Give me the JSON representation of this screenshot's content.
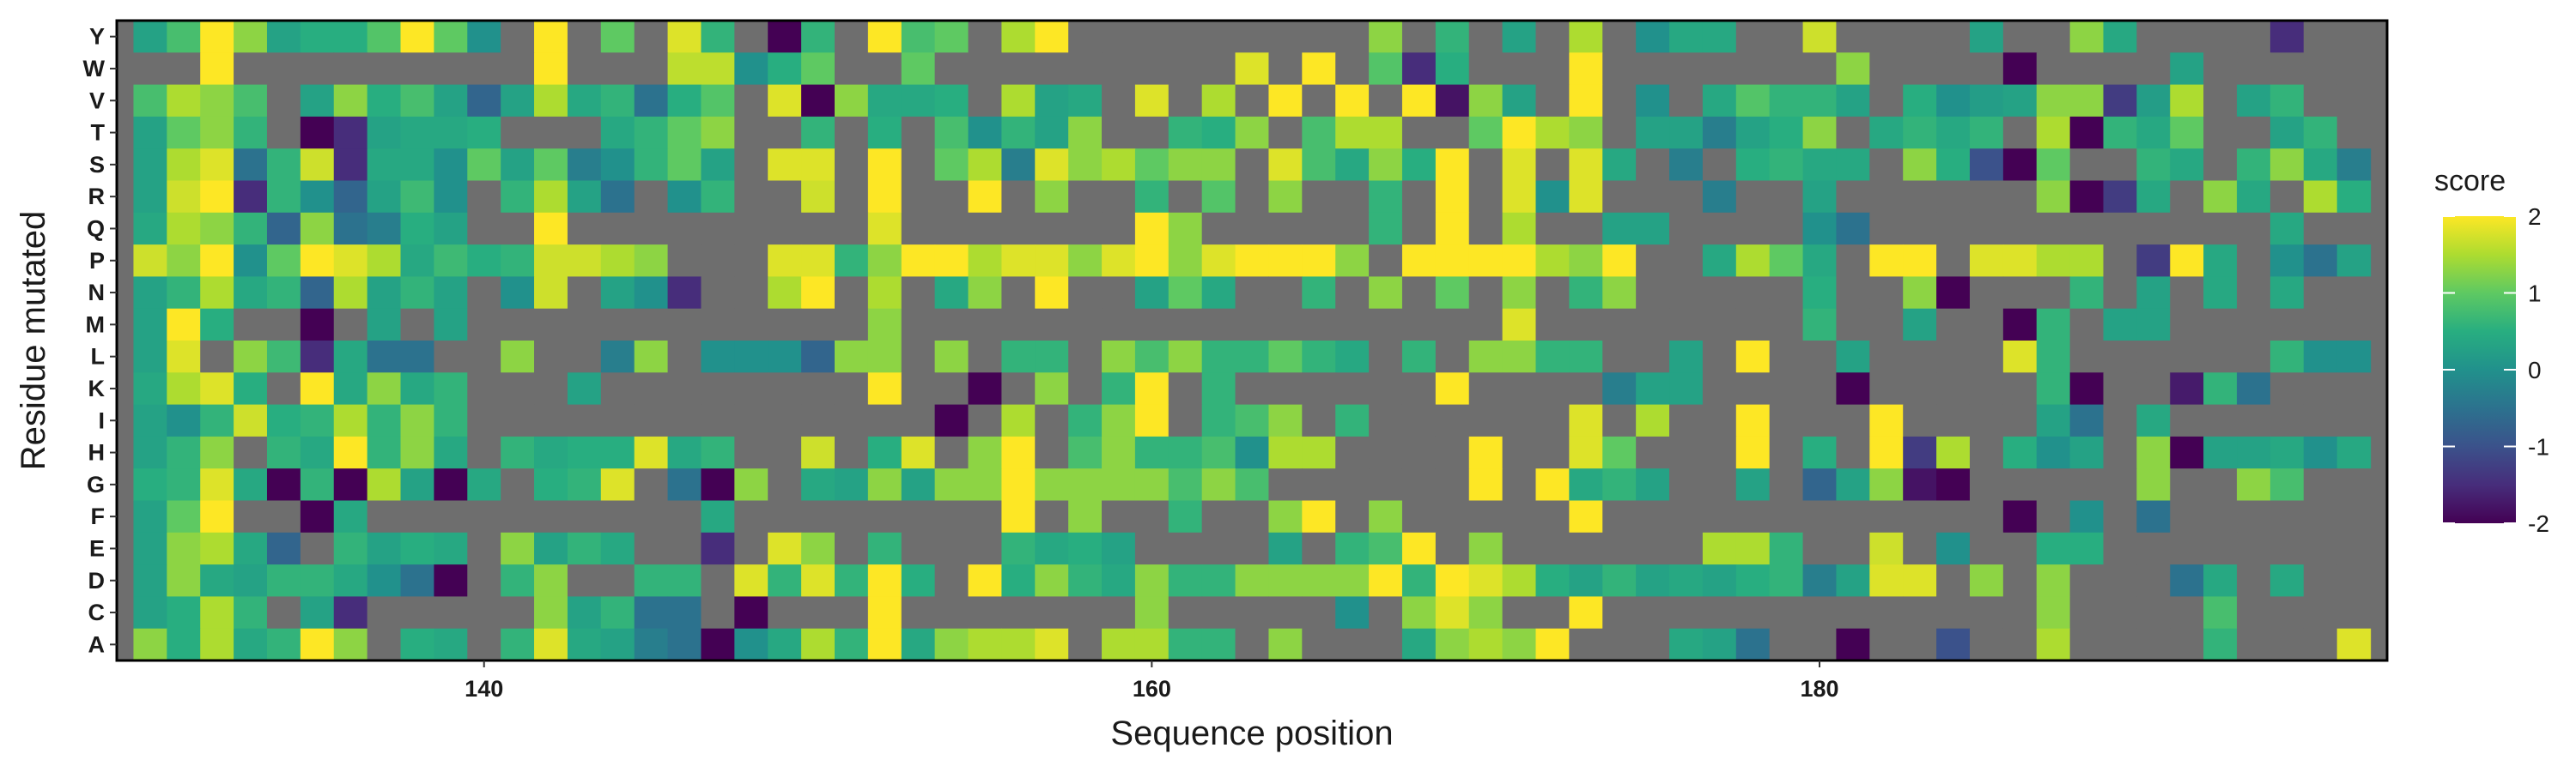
{
  "chart_data": {
    "type": "heatmap",
    "title": "",
    "xlabel": "Sequence position",
    "ylabel": "Residue mutated",
    "x_range": [
      129,
      197
    ],
    "x_ticks": [
      140,
      160,
      180
    ],
    "residues": [
      "Y",
      "W",
      "V",
      "T",
      "S",
      "R",
      "Q",
      "P",
      "N",
      "M",
      "L",
      "K",
      "I",
      "H",
      "G",
      "F",
      "E",
      "D",
      "C",
      "A"
    ],
    "positions": [
      130,
      131,
      132,
      133,
      134,
      135,
      136,
      137,
      138,
      139,
      140,
      141,
      142,
      143,
      144,
      145,
      146,
      147,
      148,
      149,
      150,
      151,
      152,
      153,
      154,
      155,
      156,
      157,
      158,
      159,
      160,
      161,
      162,
      163,
      164,
      165,
      166,
      167,
      168,
      169,
      170,
      171,
      172,
      173,
      174,
      175,
      176,
      177,
      178,
      179,
      180,
      181,
      182,
      183,
      184,
      185,
      186,
      187,
      188,
      189,
      190,
      191,
      192,
      193,
      194,
      195,
      196
    ],
    "na_color": "#6e6e6e",
    "colorscale": "viridis",
    "legend": {
      "title": "score",
      "ticks": [
        2,
        1,
        0,
        -1,
        -2
      ],
      "range": [
        -2,
        2
      ],
      "position": "right"
    },
    "values": [
      [
        0.3,
        0.8,
        2.0,
        1.3,
        0.3,
        0.5,
        0.5,
        0.9,
        2.0,
        1.0,
        0.0,
        null,
        2.0,
        null,
        1.0,
        null,
        1.8,
        0.6,
        null,
        -2.0,
        0.6,
        null,
        2.0,
        0.8,
        1.0,
        null,
        1.5,
        2.0,
        null,
        null,
        null,
        null,
        null,
        null,
        null,
        null,
        null,
        1.3,
        null,
        0.6,
        null,
        0.3,
        null,
        1.5,
        null,
        0.0,
        0.4,
        0.4,
        null,
        null,
        1.7,
        null,
        null,
        null,
        null,
        0.3,
        null,
        null,
        1.3,
        0.4,
        null,
        null,
        null,
        null,
        -1.5,
        null,
        null
      ],
      [
        null,
        null,
        2.0,
        null,
        null,
        null,
        null,
        null,
        null,
        null,
        null,
        null,
        2.0,
        null,
        null,
        null,
        1.6,
        1.6,
        0.0,
        0.5,
        1.0,
        null,
        null,
        1.0,
        null,
        null,
        null,
        null,
        null,
        null,
        null,
        null,
        null,
        1.8,
        null,
        2.0,
        null,
        0.9,
        -1.5,
        0.5,
        null,
        null,
        null,
        2.0,
        null,
        null,
        null,
        null,
        null,
        null,
        null,
        1.3,
        null,
        null,
        null,
        null,
        -2.0,
        null,
        null,
        null,
        null,
        0.3,
        null,
        null,
        null,
        null,
        null
      ],
      [
        0.8,
        1.5,
        1.3,
        0.8,
        null,
        0.3,
        1.3,
        0.5,
        0.8,
        0.3,
        -0.7,
        0.3,
        1.5,
        0.4,
        0.6,
        -0.5,
        0.5,
        0.9,
        null,
        1.8,
        -2.0,
        1.3,
        0.4,
        0.4,
        0.5,
        null,
        1.5,
        0.3,
        0.4,
        null,
        1.8,
        null,
        1.5,
        null,
        2.0,
        null,
        2.0,
        null,
        2.0,
        -1.8,
        1.3,
        0.3,
        null,
        2.0,
        null,
        0.0,
        null,
        0.4,
        0.9,
        0.6,
        0.6,
        0.3,
        null,
        0.5,
        0.0,
        0.2,
        0.3,
        1.3,
        1.3,
        -1.3,
        0.2,
        1.5,
        null,
        0.3,
        0.6,
        null,
        null
      ],
      [
        0.3,
        1.0,
        1.3,
        0.6,
        null,
        -2.0,
        -1.5,
        0.3,
        0.4,
        0.4,
        0.5,
        null,
        null,
        null,
        0.4,
        0.6,
        1.0,
        1.3,
        null,
        null,
        0.6,
        null,
        0.5,
        null,
        0.8,
        0.0,
        0.6,
        0.3,
        1.3,
        null,
        null,
        0.6,
        0.5,
        1.3,
        null,
        0.8,
        1.5,
        1.5,
        null,
        null,
        1.0,
        2.0,
        1.5,
        1.3,
        null,
        0.3,
        0.3,
        -0.3,
        0.3,
        0.5,
        1.3,
        null,
        0.4,
        0.6,
        0.4,
        0.6,
        null,
        1.5,
        -2.0,
        0.6,
        0.4,
        1.0,
        null,
        null,
        0.3,
        0.6,
        null
      ],
      [
        0.3,
        1.5,
        1.8,
        -0.5,
        0.6,
        1.7,
        -1.5,
        0.4,
        0.4,
        0.0,
        1.0,
        0.3,
        1.0,
        -0.3,
        0.0,
        0.6,
        1.0,
        0.3,
        null,
        1.8,
        1.8,
        null,
        2.0,
        null,
        1.0,
        1.5,
        -0.3,
        1.8,
        1.3,
        1.5,
        1.0,
        1.3,
        1.3,
        null,
        1.8,
        0.8,
        0.4,
        1.3,
        0.5,
        2.0,
        null,
        1.8,
        null,
        1.8,
        0.4,
        null,
        -0.3,
        null,
        0.5,
        0.6,
        0.4,
        0.4,
        null,
        1.3,
        0.5,
        -1.0,
        -2.0,
        1.0,
        null,
        null,
        0.6,
        0.4,
        null,
        0.6,
        1.3,
        0.4,
        -0.3
      ],
      [
        0.3,
        1.7,
        2.0,
        -1.5,
        0.6,
        0.0,
        -0.7,
        0.3,
        0.7,
        0.0,
        null,
        0.6,
        1.5,
        0.3,
        -0.5,
        null,
        0.0,
        0.6,
        null,
        null,
        1.7,
        null,
        2.0,
        null,
        null,
        2.0,
        null,
        1.3,
        null,
        null,
        0.6,
        null,
        0.9,
        null,
        1.3,
        null,
        null,
        0.6,
        null,
        2.0,
        null,
        1.8,
        0.0,
        1.8,
        null,
        null,
        null,
        -0.3,
        null,
        null,
        0.3,
        null,
        null,
        null,
        null,
        null,
        null,
        1.3,
        -2.0,
        -1.3,
        0.4,
        null,
        1.3,
        0.4,
        null,
        1.5,
        0.5
      ],
      [
        0.4,
        1.5,
        1.3,
        0.6,
        -0.7,
        1.3,
        -0.5,
        -0.3,
        0.5,
        0.3,
        null,
        null,
        2.0,
        null,
        null,
        null,
        null,
        null,
        null,
        null,
        null,
        null,
        1.8,
        null,
        null,
        null,
        null,
        null,
        null,
        null,
        2.0,
        1.3,
        null,
        null,
        null,
        null,
        null,
        0.6,
        null,
        2.0,
        null,
        1.5,
        null,
        null,
        0.3,
        0.3,
        null,
        null,
        null,
        null,
        0.0,
        -0.5,
        null,
        null,
        null,
        null,
        null,
        null,
        null,
        null,
        null,
        null,
        null,
        null,
        0.4,
        null,
        null
      ],
      [
        1.7,
        1.3,
        2.0,
        0.0,
        1.0,
        2.0,
        1.8,
        1.5,
        0.4,
        0.7,
        0.5,
        0.6,
        1.7,
        1.7,
        1.5,
        1.3,
        null,
        null,
        null,
        1.8,
        1.8,
        0.6,
        1.3,
        2.0,
        2.0,
        1.5,
        1.8,
        1.8,
        1.3,
        1.8,
        2.0,
        1.3,
        1.8,
        2.0,
        2.0,
        2.0,
        1.3,
        null,
        2.0,
        2.0,
        2.0,
        2.0,
        1.5,
        1.3,
        2.0,
        null,
        null,
        0.4,
        1.5,
        1.0,
        0.4,
        null,
        2.0,
        2.0,
        null,
        1.8,
        1.8,
        1.5,
        1.5,
        null,
        -1.3,
        2.0,
        0.4,
        null,
        0.0,
        -0.5,
        0.3
      ],
      [
        0.3,
        0.6,
        1.5,
        0.4,
        0.6,
        -0.7,
        1.5,
        0.3,
        0.6,
        0.3,
        null,
        0.0,
        1.7,
        null,
        0.3,
        0.0,
        -1.5,
        null,
        null,
        1.5,
        2.0,
        null,
        1.5,
        null,
        0.4,
        1.3,
        null,
        2.0,
        null,
        null,
        0.3,
        1.0,
        0.4,
        null,
        null,
        0.6,
        null,
        1.3,
        null,
        1.0,
        null,
        1.3,
        null,
        0.6,
        1.3,
        null,
        null,
        null,
        null,
        null,
        0.5,
        null,
        null,
        1.3,
        -2.0,
        null,
        null,
        null,
        0.6,
        null,
        0.3,
        null,
        0.4,
        null,
        0.4,
        null,
        null
      ],
      [
        0.3,
        2.0,
        0.5,
        null,
        null,
        -2.0,
        null,
        0.3,
        null,
        0.3,
        null,
        null,
        null,
        null,
        null,
        null,
        null,
        null,
        null,
        null,
        null,
        null,
        1.3,
        null,
        null,
        null,
        null,
        null,
        null,
        null,
        null,
        null,
        null,
        null,
        null,
        null,
        null,
        null,
        null,
        null,
        null,
        1.8,
        null,
        null,
        null,
        null,
        null,
        null,
        null,
        null,
        0.6,
        null,
        null,
        0.3,
        null,
        null,
        -2.0,
        0.6,
        null,
        0.3,
        0.3,
        null,
        null,
        null,
        null,
        null,
        null
      ],
      [
        0.3,
        1.8,
        null,
        1.3,
        0.7,
        -1.5,
        0.4,
        -0.5,
        -0.5,
        null,
        null,
        1.3,
        null,
        null,
        -0.3,
        1.3,
        null,
        0.0,
        0.0,
        0.0,
        -0.7,
        1.3,
        1.3,
        null,
        1.3,
        null,
        0.6,
        0.6,
        null,
        1.3,
        0.8,
        1.3,
        0.6,
        0.6,
        1.0,
        0.6,
        0.4,
        null,
        0.6,
        null,
        1.3,
        1.3,
        0.6,
        0.6,
        null,
        null,
        0.3,
        null,
        2.0,
        null,
        null,
        0.3,
        null,
        null,
        null,
        null,
        1.8,
        0.6,
        null,
        null,
        null,
        null,
        null,
        null,
        0.6,
        0.0,
        0.0
      ],
      [
        0.4,
        1.5,
        1.8,
        0.5,
        null,
        2.0,
        0.4,
        1.3,
        0.4,
        0.6,
        null,
        null,
        null,
        0.3,
        null,
        null,
        null,
        null,
        null,
        null,
        null,
        null,
        2.0,
        null,
        null,
        -2.0,
        null,
        1.3,
        null,
        0.6,
        2.0,
        null,
        0.6,
        null,
        null,
        null,
        null,
        null,
        null,
        2.0,
        null,
        null,
        null,
        null,
        -0.3,
        0.3,
        0.3,
        null,
        null,
        null,
        null,
        -2.0,
        null,
        null,
        null,
        null,
        null,
        0.6,
        -2.0,
        null,
        null,
        -1.7,
        0.6,
        -0.5,
        null,
        null,
        null
      ],
      [
        0.3,
        0.0,
        0.6,
        1.7,
        0.5,
        0.6,
        1.5,
        0.6,
        1.3,
        0.6,
        null,
        null,
        null,
        null,
        null,
        null,
        null,
        null,
        null,
        null,
        null,
        null,
        null,
        null,
        -2.0,
        null,
        1.5,
        null,
        0.6,
        1.3,
        2.0,
        null,
        0.6,
        0.8,
        1.3,
        null,
        0.6,
        null,
        null,
        null,
        null,
        null,
        null,
        1.8,
        null,
        1.5,
        null,
        null,
        2.0,
        null,
        null,
        null,
        2.0,
        null,
        null,
        null,
        null,
        0.3,
        -0.5,
        null,
        0.4,
        null,
        null,
        null,
        null,
        null,
        null
      ],
      [
        0.3,
        0.6,
        1.3,
        null,
        0.6,
        0.4,
        2.0,
        0.6,
        1.3,
        0.4,
        null,
        0.6,
        0.4,
        0.5,
        0.5,
        1.8,
        0.4,
        0.6,
        null,
        null,
        1.7,
        null,
        0.5,
        1.8,
        null,
        1.3,
        2.0,
        null,
        0.8,
        1.3,
        0.6,
        0.6,
        0.8,
        0.0,
        1.5,
        1.5,
        null,
        null,
        null,
        null,
        2.0,
        null,
        null,
        1.8,
        1.0,
        null,
        null,
        null,
        2.0,
        null,
        0.5,
        null,
        2.0,
        -1.3,
        1.5,
        null,
        0.5,
        0.0,
        0.3,
        null,
        1.3,
        -2.0,
        0.3,
        0.3,
        0.4,
        0.0,
        0.4
      ],
      [
        0.5,
        0.6,
        1.8,
        0.4,
        -2.0,
        0.6,
        -2.0,
        1.5,
        0.3,
        -2.0,
        0.4,
        null,
        0.5,
        0.6,
        1.8,
        null,
        -0.5,
        -2.0,
        1.3,
        null,
        0.4,
        0.3,
        1.3,
        0.3,
        1.3,
        1.3,
        2.0,
        1.3,
        1.3,
        1.3,
        1.3,
        0.8,
        1.3,
        0.8,
        null,
        null,
        null,
        null,
        null,
        null,
        2.0,
        null,
        2.0,
        0.4,
        0.6,
        0.3,
        null,
        null,
        0.3,
        null,
        -0.7,
        0.3,
        1.3,
        -1.8,
        -2.0,
        null,
        null,
        null,
        null,
        null,
        1.3,
        null,
        null,
        1.3,
        0.8,
        null,
        null
      ],
      [
        0.3,
        1.0,
        2.0,
        null,
        null,
        -2.0,
        0.4,
        null,
        null,
        null,
        null,
        null,
        null,
        null,
        null,
        null,
        null,
        0.4,
        null,
        null,
        null,
        null,
        null,
        null,
        null,
        null,
        2.0,
        null,
        1.3,
        null,
        null,
        0.6,
        null,
        null,
        1.3,
        2.0,
        null,
        1.3,
        null,
        null,
        null,
        null,
        null,
        2.0,
        null,
        null,
        null,
        null,
        null,
        null,
        null,
        null,
        null,
        null,
        null,
        null,
        -2.0,
        null,
        0.0,
        null,
        -0.5,
        null,
        null,
        null,
        null,
        null,
        null
      ],
      [
        0.3,
        1.3,
        1.5,
        0.4,
        -0.7,
        null,
        0.6,
        0.3,
        0.5,
        0.4,
        null,
        1.3,
        0.3,
        0.6,
        0.4,
        null,
        null,
        -1.5,
        null,
        1.8,
        1.3,
        null,
        0.6,
        null,
        null,
        null,
        0.6,
        0.4,
        0.5,
        0.3,
        null,
        null,
        null,
        null,
        0.3,
        null,
        0.6,
        0.8,
        2.0,
        null,
        1.3,
        null,
        null,
        null,
        null,
        null,
        null,
        1.5,
        1.5,
        0.6,
        null,
        null,
        1.7,
        null,
        0.0,
        null,
        null,
        0.5,
        0.5,
        null,
        null,
        null,
        null,
        null,
        null,
        null,
        null
      ],
      [
        0.3,
        1.3,
        0.4,
        0.3,
        0.6,
        0.6,
        0.4,
        0.0,
        -0.5,
        -2.0,
        null,
        0.6,
        1.3,
        null,
        null,
        0.6,
        0.6,
        null,
        1.8,
        0.6,
        1.8,
        0.6,
        2.0,
        0.5,
        null,
        2.0,
        0.5,
        1.3,
        0.6,
        0.4,
        1.3,
        0.6,
        0.6,
        1.3,
        1.3,
        1.3,
        1.3,
        2.0,
        0.6,
        2.0,
        1.8,
        1.5,
        0.5,
        0.3,
        0.6,
        0.3,
        0.4,
        0.3,
        0.5,
        0.6,
        -0.3,
        0.3,
        1.8,
        1.8,
        null,
        1.3,
        null,
        1.3,
        null,
        null,
        null,
        -0.5,
        0.4,
        null,
        0.4,
        null,
        null
      ],
      [
        0.3,
        0.5,
        1.5,
        0.6,
        null,
        0.3,
        -1.5,
        null,
        null,
        null,
        null,
        null,
        1.3,
        0.3,
        0.6,
        -0.5,
        -0.5,
        null,
        -2.0,
        null,
        null,
        null,
        2.0,
        null,
        null,
        null,
        null,
        null,
        null,
        null,
        1.3,
        null,
        null,
        null,
        null,
        null,
        0.0,
        null,
        1.3,
        1.8,
        1.3,
        null,
        null,
        2.0,
        null,
        null,
        null,
        null,
        null,
        null,
        null,
        null,
        null,
        null,
        null,
        null,
        null,
        1.3,
        null,
        null,
        null,
        null,
        0.8,
        null,
        null,
        null,
        null
      ],
      [
        1.3,
        0.5,
        1.5,
        0.4,
        0.6,
        2.0,
        1.3,
        null,
        0.5,
        0.4,
        null,
        0.6,
        1.8,
        0.4,
        0.3,
        -0.3,
        -0.5,
        -2.0,
        0.0,
        0.4,
        1.5,
        0.6,
        2.0,
        0.4,
        1.3,
        1.5,
        1.5,
        1.8,
        null,
        1.5,
        1.5,
        0.6,
        0.6,
        null,
        1.3,
        null,
        null,
        null,
        0.4,
        1.3,
        1.5,
        1.3,
        2.0,
        null,
        null,
        null,
        0.4,
        0.3,
        -0.5,
        null,
        null,
        -2.0,
        null,
        null,
        -1.0,
        null,
        null,
        1.5,
        null,
        null,
        null,
        null,
        0.6,
        null,
        null,
        null,
        1.8
      ]
    ]
  }
}
